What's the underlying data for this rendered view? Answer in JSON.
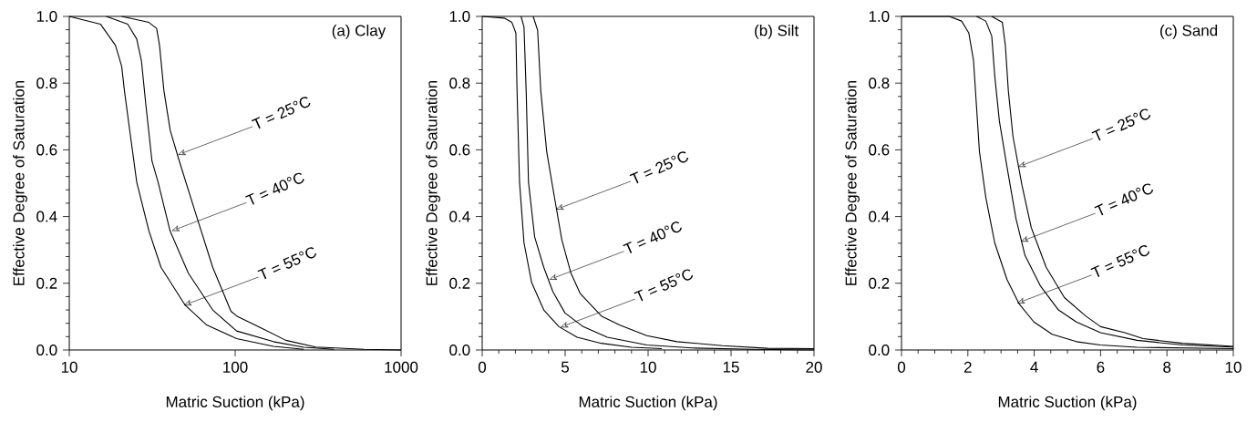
{
  "chart_data": [
    {
      "type": "line",
      "title": "(a) Clay",
      "xlabel": "Matric Suction (kPa)",
      "ylabel": "Effective Degree of Saturation",
      "log": "x",
      "marker": "none",
      "line_style": "solid",
      "xlim": [
        10,
        1000
      ],
      "ylim": [
        0,
        1
      ],
      "xticks": [
        10,
        100,
        1000
      ],
      "yticks": [
        {
          "value": 0,
          "label": "0.0"
        },
        {
          "value": 0.2,
          "label": "0.2"
        },
        {
          "value": 0.4,
          "label": "0.4"
        },
        {
          "value": 0.6,
          "label": "0.6"
        },
        {
          "value": 0.8,
          "label": "0.8"
        },
        {
          "value": 1,
          "label": "1.0"
        }
      ],
      "series": [
        {
          "color": "#000000",
          "x": [
            20.7,
            30.2,
            33.6,
            35,
            37.2,
            40.6,
            46,
            56.8,
            73.2,
            94.3,
            102,
            143,
            202,
            305,
            600,
            1000
          ],
          "values": [
            1.0,
            0.982,
            0.964,
            0.913,
            0.777,
            0.658,
            0.567,
            0.421,
            0.248,
            0.116,
            0.102,
            0.066,
            0.029,
            0.009,
            0.002,
            0.0
          ]
        },
        {
          "color": "#000000",
          "x": [
            16.7,
            22.5,
            25.5,
            27.2,
            29,
            31.5,
            34.3,
            40.5,
            52.2,
            73.2,
            102,
            170,
            259,
            395
          ],
          "values": [
            1.0,
            0.977,
            0.932,
            0.868,
            0.731,
            0.567,
            0.503,
            0.357,
            0.23,
            0.12,
            0.057,
            0.025,
            0.008,
            0.002
          ]
        },
        {
          "color": "#000000",
          "x": [
            10,
            15.4,
            19,
            20.7,
            21.5,
            23.4,
            25.5,
            30.2,
            35.7,
            50,
            67.3,
            102,
            170,
            259
          ],
          "values": [
            1.0,
            0.977,
            0.913,
            0.85,
            0.777,
            0.64,
            0.503,
            0.357,
            0.248,
            0.134,
            0.075,
            0.034,
            0.011,
            0.002
          ]
        }
      ],
      "annotations": [
        {
          "text": "T = 25°C",
          "x": 45.1,
          "y": 0.585
        },
        {
          "text": "T = 40°C",
          "x": 41.4,
          "y": 0.357
        },
        {
          "text": "T = 55°C",
          "x": 49,
          "y": 0.134
        }
      ]
    },
    {
      "type": "line",
      "title": "(b) Silt",
      "xlabel": "Matric Suction (kPa)",
      "ylabel": "Effective Degree of Saturation",
      "marker": "none",
      "line_style": "solid",
      "xlim": [
        0,
        20
      ],
      "ylim": [
        0,
        1
      ],
      "xticks": [
        0,
        5,
        10,
        15,
        20
      ],
      "yticks": [
        {
          "value": 0,
          "label": "0.0"
        },
        {
          "value": 0.2,
          "label": "0.2"
        },
        {
          "value": 0.4,
          "label": "0.4"
        },
        {
          "value": 0.6,
          "label": "0.6"
        },
        {
          "value": 0.8,
          "label": "0.8"
        },
        {
          "value": 1,
          "label": "1.0"
        }
      ],
      "series": [
        {
          "color": "#000000",
          "x": [
            3.07,
            3.34,
            3.53,
            3.89,
            4.26,
            4.8,
            5.35,
            5.9,
            7.18,
            8.27,
            9.92,
            11.74,
            14.48,
            17.2,
            20
          ],
          "values": [
            1.0,
            0.959,
            0.777,
            0.594,
            0.485,
            0.33,
            0.23,
            0.17,
            0.102,
            0.075,
            0.043,
            0.025,
            0.013,
            0.005,
            0.004
          ]
        },
        {
          "color": "#000000",
          "x": [
            2.34,
            2.52,
            2.65,
            2.79,
            3.16,
            3.71,
            4.26,
            4.99,
            6.08,
            7.54,
            9.92,
            12.66,
            16.3,
            20
          ],
          "values": [
            1.0,
            0.968,
            0.777,
            0.503,
            0.339,
            0.248,
            0.175,
            0.111,
            0.07,
            0.038,
            0.015,
            0.006,
            0.002,
            0.0
          ]
        },
        {
          "color": "#000000",
          "x": [
            0,
            1.33,
            1.79,
            2.03,
            2.1,
            2.25,
            2.52,
            2.98,
            3.71,
            4.62,
            5.72,
            7.18,
            9.0,
            10.83
          ],
          "values": [
            1.0,
            0.995,
            0.982,
            0.95,
            0.777,
            0.503,
            0.321,
            0.202,
            0.12,
            0.07,
            0.038,
            0.02,
            0.008,
            0.004
          ]
        }
      ],
      "annotations": [
        {
          "text": "T = 25°C",
          "x": 4.44,
          "y": 0.421
        },
        {
          "text": "T = 40°C",
          "x": 4.04,
          "y": 0.211
        },
        {
          "text": "T = 55°C",
          "x": 4.71,
          "y": 0.068
        }
      ]
    },
    {
      "type": "line",
      "title": "(c) Sand",
      "xlabel": "Matric Suction (kPa)",
      "ylabel": "Effective Degree of Saturation",
      "marker": "none",
      "line_style": "solid",
      "xlim": [
        0,
        10
      ],
      "ylim": [
        0,
        1
      ],
      "xticks": [
        0,
        2,
        4,
        6,
        8,
        10
      ],
      "yticks": [
        {
          "value": 0,
          "label": "0.0"
        },
        {
          "value": 0.2,
          "label": "0.2"
        },
        {
          "value": 0.4,
          "label": "0.4"
        },
        {
          "value": 0.6,
          "label": "0.6"
        },
        {
          "value": 0.8,
          "label": "0.8"
        },
        {
          "value": 1,
          "label": "1.0"
        }
      ],
      "series": [
        {
          "color": "#000000",
          "x": [
            2.72,
            3.04,
            3.13,
            3.22,
            3.36,
            3.63,
            3.91,
            4.36,
            4.91,
            5.55,
            6.0,
            6.73,
            7.28,
            8.47,
            10
          ],
          "values": [
            1.0,
            0.982,
            0.913,
            0.777,
            0.64,
            0.494,
            0.367,
            0.248,
            0.157,
            0.102,
            0.07,
            0.052,
            0.034,
            0.02,
            0.011
          ]
        },
        {
          "color": "#000000",
          "x": [
            2.26,
            2.54,
            2.72,
            2.81,
            2.95,
            3.18,
            3.45,
            3.72,
            4.18,
            4.73,
            5.27,
            6.0,
            7.1,
            8.47,
            10
          ],
          "values": [
            1.0,
            0.986,
            0.941,
            0.822,
            0.686,
            0.549,
            0.394,
            0.284,
            0.193,
            0.12,
            0.084,
            0.052,
            0.029,
            0.015,
            0.009
          ]
        },
        {
          "color": "#000000",
          "x": [
            0,
            1.44,
            1.81,
            2.03,
            2.17,
            2.26,
            2.35,
            2.54,
            2.81,
            3.18,
            3.54,
            3.99,
            4.54,
            5.27,
            5.99,
            7.1,
            10
          ],
          "values": [
            1.0,
            1.0,
            0.986,
            0.95,
            0.868,
            0.731,
            0.594,
            0.458,
            0.321,
            0.211,
            0.139,
            0.084,
            0.047,
            0.025,
            0.015,
            0.008,
            0.004
          ]
        }
      ],
      "annotations": [
        {
          "text": "T = 25°C",
          "x": 3.51,
          "y": 0.549
        },
        {
          "text": "T = 40°C",
          "x": 3.59,
          "y": 0.325
        },
        {
          "text": "T = 55°C",
          "x": 3.48,
          "y": 0.14
        }
      ]
    }
  ]
}
